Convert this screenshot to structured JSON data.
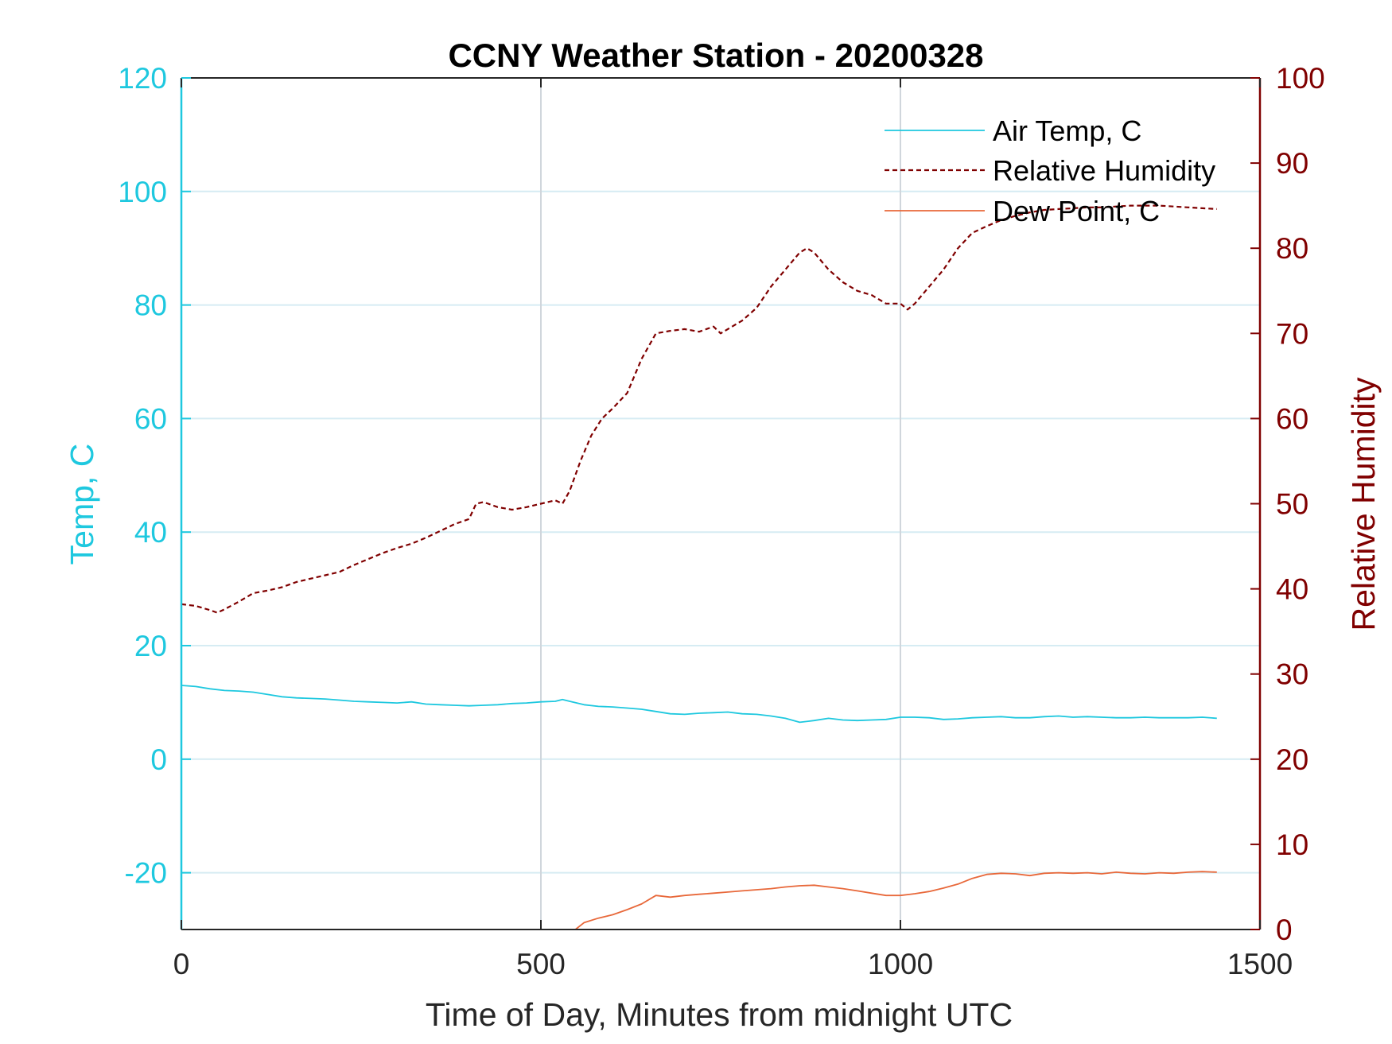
{
  "chart_data": {
    "type": "line",
    "title": "CCNY Weather Station - 20200328",
    "xlabel": "Time of Day, Minutes from midnight UTC",
    "ylabel_left": "Temp, C",
    "ylabel_right": "Relative Humidity",
    "xlim": [
      0,
      1500
    ],
    "ylim_left": [
      -30,
      120
    ],
    "ylim_right": [
      0,
      100
    ],
    "x_ticks": [
      "0",
      "500",
      "1000",
      "1500"
    ],
    "y_ticks_left": [
      "-20",
      "0",
      "20",
      "40",
      "60",
      "80",
      "100",
      "120"
    ],
    "y_ticks_right": [
      "0",
      "10",
      "20",
      "30",
      "40",
      "50",
      "60",
      "70",
      "80",
      "90",
      "100"
    ],
    "grid": true,
    "legend_position": "top-right",
    "colors": {
      "temp": "#1ec8df",
      "humidity": "#800000",
      "dewpoint": "#e8683a",
      "grid": "#d6ecf3",
      "xgrid": "#d0d6dc"
    },
    "series": [
      {
        "name": "Air Temp, C",
        "axis": "left",
        "style": "solid",
        "x": [
          0,
          20,
          40,
          60,
          80,
          100,
          120,
          140,
          160,
          180,
          200,
          220,
          240,
          260,
          280,
          300,
          320,
          340,
          360,
          380,
          400,
          420,
          440,
          460,
          480,
          500,
          520,
          530,
          540,
          560,
          580,
          600,
          620,
          640,
          660,
          680,
          700,
          720,
          740,
          760,
          780,
          800,
          820,
          840,
          860,
          880,
          900,
          920,
          940,
          960,
          980,
          1000,
          1020,
          1040,
          1060,
          1080,
          1100,
          1120,
          1140,
          1160,
          1180,
          1200,
          1220,
          1240,
          1260,
          1280,
          1300,
          1320,
          1340,
          1360,
          1380,
          1400,
          1420,
          1440
        ],
        "values": [
          13.0,
          12.8,
          12.4,
          12.1,
          12.0,
          11.8,
          11.4,
          11.0,
          10.8,
          10.7,
          10.6,
          10.4,
          10.2,
          10.1,
          10.0,
          9.9,
          10.1,
          9.7,
          9.6,
          9.5,
          9.4,
          9.5,
          9.6,
          9.8,
          9.9,
          10.1,
          10.2,
          10.5,
          10.2,
          9.6,
          9.3,
          9.2,
          9.0,
          8.8,
          8.4,
          8.0,
          7.9,
          8.1,
          8.2,
          8.3,
          8.0,
          7.9,
          7.6,
          7.2,
          6.5,
          6.8,
          7.2,
          6.9,
          6.8,
          6.9,
          7.0,
          7.4,
          7.4,
          7.3,
          7.0,
          7.1,
          7.3,
          7.4,
          7.5,
          7.3,
          7.3,
          7.5,
          7.6,
          7.4,
          7.5,
          7.4,
          7.3,
          7.3,
          7.4,
          7.3,
          7.3,
          7.3,
          7.4,
          7.2
        ]
      },
      {
        "name": "Relative Humidity",
        "axis": "right",
        "style": "dashed",
        "x": [
          0,
          20,
          40,
          50,
          60,
          80,
          100,
          120,
          140,
          160,
          180,
          200,
          220,
          240,
          260,
          280,
          300,
          320,
          340,
          360,
          380,
          400,
          410,
          420,
          440,
          460,
          480,
          500,
          520,
          530,
          540,
          555,
          570,
          585,
          600,
          620,
          640,
          660,
          680,
          700,
          720,
          740,
          750,
          760,
          780,
          800,
          820,
          840,
          860,
          870,
          880,
          900,
          920,
          940,
          960,
          980,
          1000,
          1010,
          1020,
          1040,
          1060,
          1080,
          1100,
          1120,
          1140,
          1160,
          1180,
          1200,
          1220,
          1240,
          1260,
          1280,
          1300,
          1320,
          1340,
          1360,
          1380,
          1400,
          1420,
          1440
        ],
        "values": [
          38.2,
          38.0,
          37.5,
          37.2,
          37.6,
          38.5,
          39.5,
          39.8,
          40.2,
          40.8,
          41.2,
          41.6,
          42.0,
          42.8,
          43.5,
          44.2,
          44.8,
          45.3,
          46.0,
          46.8,
          47.6,
          48.2,
          50.0,
          50.2,
          49.6,
          49.3,
          49.6,
          50.0,
          50.4,
          50.0,
          51.5,
          55.0,
          58.0,
          60.0,
          61.2,
          63.0,
          67.0,
          70.0,
          70.3,
          70.5,
          70.2,
          70.8,
          70.0,
          70.5,
          71.5,
          73.0,
          75.5,
          77.5,
          79.5,
          80.0,
          79.5,
          77.5,
          76.0,
          75.0,
          74.5,
          73.5,
          73.5,
          72.8,
          73.5,
          75.5,
          77.5,
          80.0,
          81.8,
          82.6,
          83.3,
          83.8,
          84.2,
          84.5,
          84.6,
          84.7,
          84.8,
          84.8,
          84.9,
          85.0,
          85.0,
          85.0,
          84.9,
          84.8,
          84.7,
          84.6
        ]
      },
      {
        "name": "Dew Point, C",
        "axis": "left",
        "style": "solid",
        "x": [
          548,
          560,
          580,
          600,
          620,
          640,
          660,
          680,
          700,
          720,
          740,
          760,
          780,
          800,
          820,
          840,
          860,
          880,
          900,
          920,
          940,
          960,
          980,
          1000,
          1020,
          1040,
          1060,
          1080,
          1100,
          1120,
          1140,
          1160,
          1180,
          1200,
          1220,
          1240,
          1260,
          1280,
          1300,
          1320,
          1340,
          1360,
          1380,
          1400,
          1420,
          1440
        ],
        "values": [
          -30.0,
          -28.8,
          -28.0,
          -27.4,
          -26.5,
          -25.5,
          -24.0,
          -24.3,
          -24.0,
          -23.8,
          -23.6,
          -23.4,
          -23.2,
          -23.0,
          -22.8,
          -22.5,
          -22.3,
          -22.2,
          -22.5,
          -22.8,
          -23.2,
          -23.6,
          -24.0,
          -24.0,
          -23.7,
          -23.3,
          -22.7,
          -22.0,
          -21.0,
          -20.3,
          -20.1,
          -20.2,
          -20.5,
          -20.1,
          -20.0,
          -20.1,
          -20.0,
          -20.2,
          -19.9,
          -20.1,
          -20.2,
          -20.0,
          -20.1,
          -19.9,
          -19.8,
          -19.9
        ]
      }
    ]
  }
}
